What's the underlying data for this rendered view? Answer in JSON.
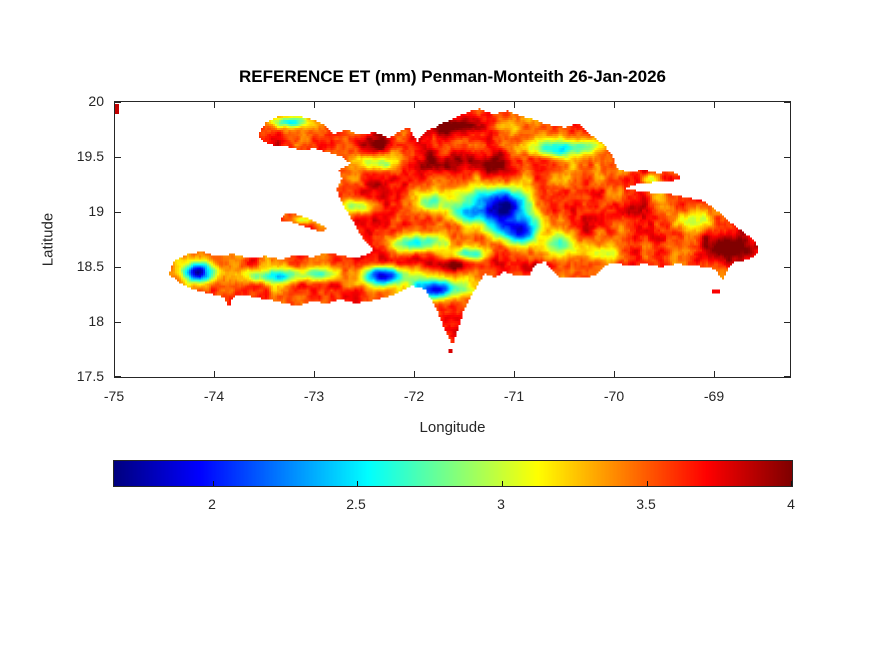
{
  "chart_data": {
    "type": "heatmap",
    "title": "REFERENCE ET (mm) Penman-Monteith 26-Jan-2026",
    "xlabel": "Longitude",
    "ylabel": "Latitude",
    "xlim": [
      -75,
      -68.25
    ],
    "ylim": [
      17.5,
      20
    ],
    "grid": false,
    "xticks": {
      "values": [
        -75,
        -74,
        -73,
        -72,
        -71,
        -70,
        -69
      ],
      "labels": [
        "-75",
        "-74",
        "-73",
        "-72",
        "-71",
        "-70",
        "-69"
      ]
    },
    "yticks": {
      "values": [
        20,
        19.5,
        19,
        18.5,
        18,
        17.5
      ],
      "labels": [
        "20",
        "19.5",
        "19",
        "18.5",
        "18",
        "17.5"
      ]
    },
    "colorbar": {
      "orientation": "horizontal",
      "colormap": "jet",
      "cmin": 1.66,
      "cmax": 4.0,
      "tick_values": [
        2,
        2.5,
        3,
        3.5,
        4
      ],
      "tick_labels": [
        "2",
        "2.5",
        "3",
        "3.5",
        "4"
      ]
    },
    "colors": {
      "axis": "#262626",
      "title": "#000000",
      "background": "#ffffff"
    },
    "field": {
      "units": "mm",
      "base_value": 3.55,
      "noise": {
        "seed": 7,
        "octaves": [
          [
            0.24,
            0.2
          ],
          [
            0.12,
            0.15
          ],
          [
            0.06,
            0.11
          ],
          [
            0.03,
            0.07
          ]
        ]
      },
      "spots": [
        [
          -74.17,
          18.45,
          0.16,
          0.09,
          -1.85
        ],
        [
          -73.45,
          18.42,
          0.28,
          0.07,
          -1.05
        ],
        [
          -72.95,
          18.44,
          0.18,
          0.07,
          -0.9
        ],
        [
          -72.3,
          18.42,
          0.25,
          0.09,
          -1.55
        ],
        [
          -71.78,
          18.3,
          0.28,
          0.09,
          -1.45
        ],
        [
          -71.45,
          18.62,
          0.18,
          0.06,
          -0.9
        ],
        [
          -71.15,
          19.05,
          0.28,
          0.17,
          -1.9
        ],
        [
          -70.95,
          18.82,
          0.2,
          0.12,
          -1.6
        ],
        [
          -71.5,
          18.97,
          0.15,
          0.1,
          -0.95
        ],
        [
          -72.55,
          19.05,
          0.18,
          0.07,
          -0.8
        ],
        [
          -71.95,
          18.72,
          0.28,
          0.08,
          -1.05
        ],
        [
          -70.55,
          19.58,
          0.38,
          0.08,
          -0.85
        ],
        [
          -73.25,
          19.82,
          0.18,
          0.05,
          -0.95
        ],
        [
          -69.62,
          19.3,
          0.1,
          0.05,
          -0.7
        ],
        [
          -72.35,
          19.45,
          0.18,
          0.07,
          -0.75
        ],
        [
          -71.85,
          19.1,
          0.18,
          0.1,
          -0.7
        ],
        [
          -69.2,
          18.92,
          0.18,
          0.08,
          -0.6
        ],
        [
          -70.55,
          18.72,
          0.12,
          0.12,
          -0.9
        ],
        [
          -70.15,
          18.62,
          0.15,
          0.07,
          -0.5
        ],
        [
          -73.1,
          18.92,
          0.12,
          0.04,
          -0.5
        ],
        [
          -71.62,
          18.52,
          0.25,
          0.055,
          0.5
        ],
        [
          -72.2,
          18.55,
          0.2,
          0.06,
          0.35
        ],
        [
          -71.4,
          19.45,
          0.5,
          0.1,
          0.4
        ],
        [
          -70.75,
          18.48,
          0.25,
          0.08,
          0.45
        ],
        [
          -68.85,
          18.68,
          0.25,
          0.15,
          0.4
        ],
        [
          -71.7,
          19.78,
          0.3,
          0.1,
          0.4
        ],
        [
          -72.4,
          19.62,
          0.25,
          0.08,
          0.35
        ],
        [
          -69.9,
          19.0,
          0.2,
          0.1,
          0.3
        ],
        [
          -71.6,
          18.9,
          0.14,
          0.12,
          0.3
        ]
      ]
    },
    "geometry": {
      "hispaniola": [
        [
          -73.57,
          19.7
        ],
        [
          -73.5,
          19.81
        ],
        [
          -73.38,
          19.87
        ],
        [
          -73.21,
          19.88
        ],
        [
          -73.01,
          19.84
        ],
        [
          -72.88,
          19.78
        ],
        [
          -72.81,
          19.71
        ],
        [
          -72.68,
          19.75
        ],
        [
          -72.54,
          19.7
        ],
        [
          -72.4,
          19.73
        ],
        [
          -72.26,
          19.67
        ],
        [
          -72.14,
          19.74
        ],
        [
          -72.06,
          19.78
        ],
        [
          -71.98,
          19.64
        ],
        [
          -71.88,
          19.74
        ],
        [
          -71.8,
          19.77
        ],
        [
          -71.74,
          19.8
        ],
        [
          -71.6,
          19.86
        ],
        [
          -71.47,
          19.91
        ],
        [
          -71.36,
          19.94
        ],
        [
          -71.22,
          19.89
        ],
        [
          -71.08,
          19.92
        ],
        [
          -70.94,
          19.87
        ],
        [
          -70.8,
          19.84
        ],
        [
          -70.69,
          19.8
        ],
        [
          -70.5,
          19.77
        ],
        [
          -70.36,
          19.81
        ],
        [
          -70.3,
          19.74
        ],
        [
          -70.12,
          19.62
        ],
        [
          -70.02,
          19.5
        ],
        [
          -69.97,
          19.38
        ],
        [
          -69.85,
          19.37
        ],
        [
          -69.7,
          19.38
        ],
        [
          -69.56,
          19.35
        ],
        [
          -69.44,
          19.37
        ],
        [
          -69.36,
          19.34
        ],
        [
          -69.34,
          19.3
        ],
        [
          -69.44,
          19.28
        ],
        [
          -69.58,
          19.27
        ],
        [
          -69.72,
          19.26
        ],
        [
          -69.84,
          19.24
        ],
        [
          -69.89,
          19.21
        ],
        [
          -69.76,
          19.19
        ],
        [
          -69.6,
          19.17
        ],
        [
          -69.44,
          19.16
        ],
        [
          -69.28,
          19.13
        ],
        [
          -69.12,
          19.1
        ],
        [
          -68.99,
          19.02
        ],
        [
          -68.88,
          18.93
        ],
        [
          -68.72,
          18.82
        ],
        [
          -68.6,
          18.74
        ],
        [
          -68.56,
          18.66
        ],
        [
          -68.6,
          18.6
        ],
        [
          -68.7,
          18.56
        ],
        [
          -68.8,
          18.55
        ],
        [
          -68.87,
          18.48
        ],
        [
          -68.92,
          18.38
        ],
        [
          -68.98,
          18.46
        ],
        [
          -69.06,
          18.5
        ],
        [
          -69.22,
          18.51
        ],
        [
          -69.38,
          18.53
        ],
        [
          -69.54,
          18.5
        ],
        [
          -69.7,
          18.53
        ],
        [
          -69.86,
          18.51
        ],
        [
          -70.02,
          18.54
        ],
        [
          -70.12,
          18.5
        ],
        [
          -70.2,
          18.42
        ],
        [
          -70.38,
          18.4
        ],
        [
          -70.55,
          18.41
        ],
        [
          -70.62,
          18.46
        ],
        [
          -70.7,
          18.55
        ],
        [
          -70.8,
          18.52
        ],
        [
          -70.86,
          18.42
        ],
        [
          -71.0,
          18.42
        ],
        [
          -71.1,
          18.46
        ],
        [
          -71.2,
          18.41
        ],
        [
          -71.3,
          18.44
        ],
        [
          -71.38,
          18.33
        ],
        [
          -71.46,
          18.2
        ],
        [
          -71.52,
          18.08
        ],
        [
          -71.56,
          17.95
        ],
        [
          -71.62,
          17.79
        ],
        [
          -71.7,
          17.92
        ],
        [
          -71.76,
          18.06
        ],
        [
          -71.82,
          18.18
        ],
        [
          -71.9,
          18.3
        ],
        [
          -72.04,
          18.33
        ],
        [
          -72.18,
          18.26
        ],
        [
          -72.32,
          18.22
        ],
        [
          -72.46,
          18.19
        ],
        [
          -72.6,
          18.17
        ],
        [
          -72.74,
          18.21
        ],
        [
          -72.88,
          18.17
        ],
        [
          -73.02,
          18.19
        ],
        [
          -73.16,
          18.15
        ],
        [
          -73.3,
          18.17
        ],
        [
          -73.44,
          18.2
        ],
        [
          -73.58,
          18.22
        ],
        [
          -73.72,
          18.25
        ],
        [
          -73.82,
          18.23
        ],
        [
          -73.86,
          18.14
        ],
        [
          -73.92,
          18.23
        ],
        [
          -74.06,
          18.26
        ],
        [
          -74.2,
          18.29
        ],
        [
          -74.34,
          18.35
        ],
        [
          -74.46,
          18.43
        ],
        [
          -74.42,
          18.55
        ],
        [
          -74.3,
          18.61
        ],
        [
          -74.14,
          18.64
        ],
        [
          -73.98,
          18.6
        ],
        [
          -73.82,
          18.62
        ],
        [
          -73.66,
          18.58
        ],
        [
          -73.5,
          18.6
        ],
        [
          -73.34,
          18.57
        ],
        [
          -73.18,
          18.61
        ],
        [
          -73.02,
          18.59
        ],
        [
          -72.9,
          18.63
        ],
        [
          -72.76,
          18.61
        ],
        [
          -72.6,
          18.58
        ],
        [
          -72.48,
          18.61
        ],
        [
          -72.42,
          18.66
        ],
        [
          -72.49,
          18.72
        ],
        [
          -72.55,
          18.8
        ],
        [
          -72.61,
          18.9
        ],
        [
          -72.67,
          18.99
        ],
        [
          -72.73,
          19.08
        ],
        [
          -72.78,
          19.2
        ],
        [
          -72.73,
          19.3
        ],
        [
          -72.76,
          19.38
        ],
        [
          -72.64,
          19.44
        ],
        [
          -72.72,
          19.5
        ],
        [
          -72.86,
          19.54
        ],
        [
          -73.0,
          19.58
        ],
        [
          -73.14,
          19.56
        ],
        [
          -73.28,
          19.6
        ],
        [
          -73.42,
          19.61
        ],
        [
          -73.52,
          19.64
        ]
      ],
      "gonave": [
        [
          -73.33,
          18.97
        ],
        [
          -73.22,
          18.99
        ],
        [
          -73.12,
          18.96
        ],
        [
          -73.02,
          18.92
        ],
        [
          -72.92,
          18.88
        ],
        [
          -72.86,
          18.84
        ],
        [
          -72.95,
          18.82
        ],
        [
          -73.05,
          18.85
        ],
        [
          -73.15,
          18.88
        ],
        [
          -73.25,
          18.91
        ],
        [
          -73.34,
          18.92
        ]
      ],
      "dots": [
        {
          "lon": -74.975,
          "lat": 19.93,
          "w": 2,
          "h": 5,
          "v": 3.85
        },
        {
          "lon": -71.64,
          "lat": 17.73,
          "w": 2,
          "h": 2,
          "v": 3.8
        },
        {
          "lon": -68.98,
          "lat": 18.285,
          "w": 4,
          "h": 2,
          "v": 3.72
        }
      ]
    }
  }
}
